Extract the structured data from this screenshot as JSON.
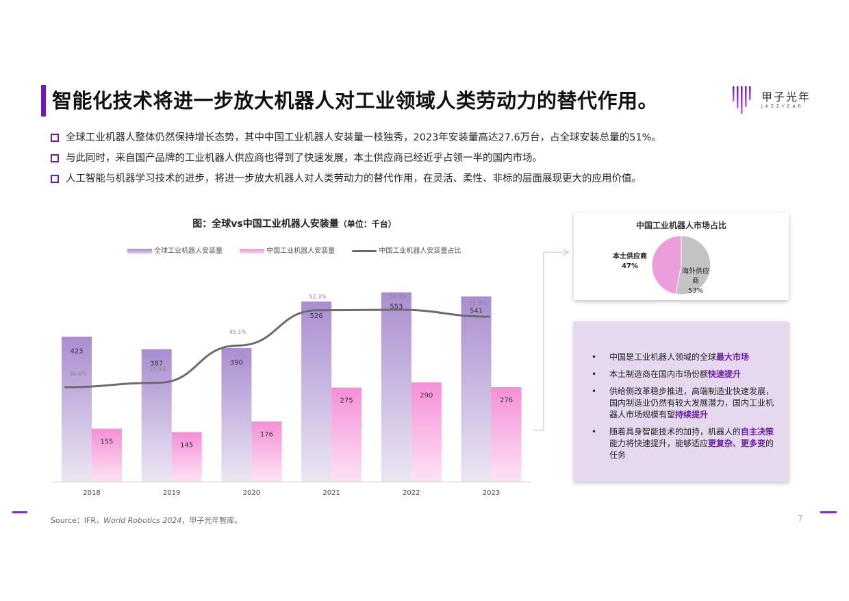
{
  "header": {
    "title": "智能化技术将进一步放大机器人对工业领域人类劳动力的替代作用。",
    "logo_cn": "甲子光年",
    "logo_en": "JAZZYEAR"
  },
  "bullets": [
    "全球工业机器人整体仍然保持增长态势，其中中国工业机器人安装量一枝独秀，2023年安装量高达27.6万台，占全球安装总量的51%。",
    "与此同时，来自国产品牌的工业机器人供应商也得到了快速发展，本土供应商已经近乎占领一半的国内市场。",
    "人工智能与机器学习技术的进步，将进一步放大机器人对人类劳动力的替代作用，在灵活、柔性、非标的层面展现更大的应用价值。"
  ],
  "chart_data": [
    {
      "type": "bar",
      "title": "图：全球vs中国工业机器人安装量",
      "title_unit": "（单位：千台）",
      "categories": [
        "2018",
        "2019",
        "2020",
        "2021",
        "2022",
        "2023"
      ],
      "series": [
        {
          "name": "全球工业机器人安装量",
          "type": "bar",
          "values": [
            423,
            387,
            390,
            526,
            553,
            541
          ],
          "color": "#a98dd0"
        },
        {
          "name": "中国工业机器人安装量",
          "type": "bar",
          "values": [
            155,
            145,
            176,
            275,
            290,
            276
          ],
          "color": "#f48fd6"
        },
        {
          "name": "中国工业机器人安装量占比",
          "type": "line",
          "values": [
            36.6,
            37.5,
            45.1,
            52.3,
            52.4,
            51.0
          ],
          "labels": [
            "36.6%",
            "37.5%",
            "45.1%",
            "52.3%",
            "52.4%",
            "51.0%"
          ],
          "color": "#6b6b6b"
        }
      ],
      "ylim": [
        0,
        600
      ],
      "legend": "top",
      "grid": false
    },
    {
      "type": "pie",
      "title": "中国工业机器人市场占比",
      "slices": [
        {
          "label": "本土供应商",
          "value": 47,
          "display": "47%",
          "color": "#ec9ddc"
        },
        {
          "label": "海外供应商",
          "value": 53,
          "display": "53%",
          "color": "#c3c3c3"
        }
      ]
    }
  ],
  "takeaways": [
    [
      {
        "t": "中国是工业机器人领域的全球"
      },
      {
        "t": "最大市场",
        "hl": true
      }
    ],
    [
      {
        "t": "本土制造商在国内市场份额"
      },
      {
        "t": "快速提升",
        "hl": true
      }
    ],
    [
      {
        "t": "供给侧改革稳步推进，高端制造业快速发展，国内制造业仍然有较大发展潜力，国内工业机器人市场规模有望"
      },
      {
        "t": "持续提升",
        "hl": true
      }
    ],
    [
      {
        "t": "随着具身智能技术的加持，机器人的"
      },
      {
        "t": "自主决策",
        "hl": true
      },
      {
        "t": "能力将快速提升，能够适应"
      },
      {
        "t": "更复杂、更多变",
        "hl": true
      },
      {
        "t": "的任务"
      }
    ]
  ],
  "footer": {
    "source_prefix": "Source：IFR，",
    "source_italic": "World Robotics 2024",
    "source_suffix": "，甲子光年智库。",
    "page": "7"
  },
  "colors": {
    "accent": "#6b1fa8",
    "box_bg": "#e6d8ee"
  }
}
